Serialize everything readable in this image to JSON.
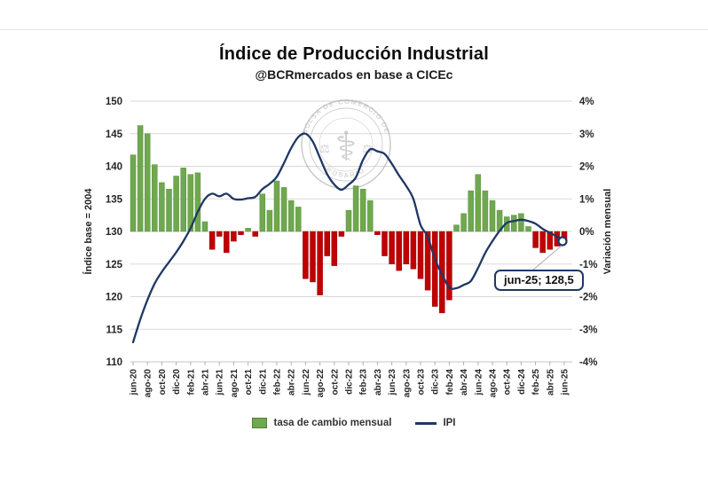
{
  "title": "Índice de Producción Industrial",
  "subtitle": "@BCRmercados en base a CICEc",
  "annotation": {
    "label": "jun-25; 128,5"
  },
  "legend": {
    "bar_label": "tasa de cambio mensual",
    "line_label": "IPI"
  },
  "watermark": {
    "arc_text_top": "BOLSA DE COMERCIO DE",
    "arc_text_bottom": "ROSARIO",
    "emblem": "caduceus-and-scales"
  },
  "colors": {
    "bar_positive": "#6fa84f",
    "bar_negative": "#c00000",
    "line": "#1f3864",
    "grid": "#d9d9d9",
    "axis_text": "#262626",
    "marker_fill": "#ffffff"
  },
  "chart_data": {
    "type": "combo",
    "title": "Índice de Producción Industrial",
    "subtitle": "@BCRmercados en base a CICEc",
    "x": [
      "jun-20",
      "jul-20",
      "ago-20",
      "sep-20",
      "oct-20",
      "nov-20",
      "dic-20",
      "ene-21",
      "feb-21",
      "mar-21",
      "abr-21",
      "may-21",
      "jun-21",
      "jul-21",
      "ago-21",
      "sep-21",
      "oct-21",
      "nov-21",
      "dic-21",
      "ene-22",
      "feb-22",
      "mar-22",
      "abr-22",
      "may-22",
      "jun-22",
      "jul-22",
      "ago-22",
      "sep-22",
      "oct-22",
      "nov-22",
      "dic-22",
      "ene-23",
      "feb-23",
      "mar-23",
      "abr-23",
      "may-23",
      "jun-23",
      "jul-23",
      "ago-23",
      "sep-23",
      "oct-23",
      "nov-23",
      "dic-23",
      "ene-24",
      "feb-24",
      "mar-24",
      "abr-24",
      "may-24",
      "jun-24",
      "jul-24",
      "ago-24",
      "sep-24",
      "oct-24",
      "nov-24",
      "dic-24",
      "ene-25",
      "feb-25",
      "mar-25",
      "abr-25",
      "may-25",
      "jun-25"
    ],
    "x_tick_labels": [
      "jun-20",
      "ago-20",
      "oct-20",
      "dic-20",
      "feb-21",
      "abr-21",
      "jun-21",
      "ago-21",
      "oct-21",
      "dic-21",
      "feb-22",
      "abr-22",
      "jun-22",
      "ago-22",
      "oct-22",
      "dic-22",
      "feb-23",
      "abr-23",
      "jun-23",
      "ago-23",
      "oct-23",
      "dic-23",
      "feb-24",
      "abr-24",
      "jun-24",
      "ago-24",
      "oct-24",
      "dic-24",
      "feb-25",
      "abr-25",
      "jun-25"
    ],
    "left_axis": {
      "title": "Índice base = 2004",
      "min": 110,
      "max": 150,
      "ticks": [
        150,
        145,
        140,
        135,
        130,
        125,
        120,
        115,
        110
      ]
    },
    "right_axis": {
      "title": "Variación mensual",
      "min": -4,
      "max": 4,
      "ticks": [
        "4%",
        "3%",
        "2%",
        "1%",
        "0%",
        "-1%",
        "-2%",
        "-3%",
        "-4%"
      ]
    },
    "grid": true,
    "legend_position": "bottom",
    "series": [
      {
        "name": "tasa de cambio mensual",
        "type": "bar",
        "axis": "right",
        "unit": "%",
        "values": [
          2.35,
          3.25,
          3.0,
          2.05,
          1.5,
          1.3,
          1.7,
          1.95,
          1.75,
          1.8,
          0.3,
          -0.55,
          -0.15,
          -0.65,
          -0.3,
          -0.1,
          0.1,
          -0.15,
          1.15,
          0.65,
          1.55,
          1.35,
          0.95,
          0.75,
          -1.45,
          -1.55,
          -1.95,
          -0.75,
          -1.05,
          -0.15,
          0.65,
          1.4,
          1.3,
          0.95,
          -0.1,
          -0.75,
          -1.0,
          -1.2,
          -1.0,
          -1.15,
          -1.45,
          -1.8,
          -2.3,
          -2.5,
          -2.1,
          0.2,
          0.55,
          1.25,
          1.75,
          1.25,
          0.95,
          0.65,
          0.45,
          0.5,
          0.55,
          0.15,
          -0.5,
          -0.65,
          -0.55,
          -0.45,
          -0.35
        ]
      },
      {
        "name": "IPI",
        "type": "line",
        "axis": "left",
        "values": [
          113.0,
          116.5,
          119.5,
          122.0,
          123.8,
          125.3,
          126.8,
          128.5,
          130.5,
          133.0,
          135.0,
          135.8,
          135.4,
          135.8,
          135.0,
          134.9,
          135.1,
          135.3,
          136.5,
          137.3,
          138.4,
          140.5,
          142.8,
          144.5,
          145.0,
          143.8,
          141.3,
          138.8,
          137.2,
          136.4,
          137.2,
          138.3,
          141.0,
          142.6,
          142.3,
          141.9,
          140.4,
          138.6,
          137.0,
          135.0,
          131.0,
          129.2,
          125.8,
          123.4,
          121.4,
          121.3,
          121.8,
          122.4,
          124.4,
          126.7,
          128.5,
          130.1,
          131.3,
          131.6,
          131.8,
          131.6,
          131.2,
          130.4,
          129.8,
          129.2,
          128.5
        ],
        "last_point_label": "jun-25; 128,5"
      }
    ]
  }
}
